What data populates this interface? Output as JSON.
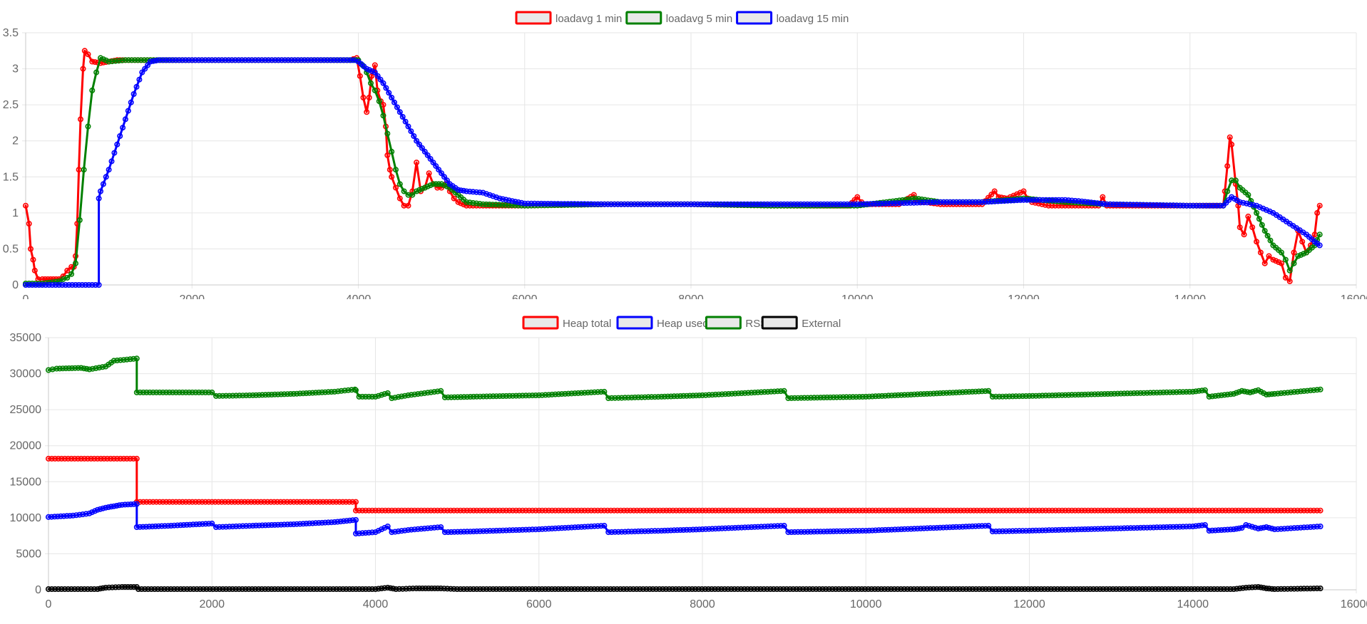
{
  "chart_data": [
    {
      "type": "line",
      "legend_position": "top-center",
      "grid": true,
      "xlim": [
        0,
        16000
      ],
      "ylim": [
        0,
        3.5
      ],
      "x_ticks": [
        "0",
        "2000",
        "4000",
        "6000",
        "8000",
        "10000",
        "12000",
        "14000",
        "16000"
      ],
      "y_ticks": [
        "0",
        "0.5",
        "1",
        "1.5",
        "2",
        "2.5",
        "3",
        "3.5"
      ],
      "series": [
        {
          "name": "loadavg 1 min",
          "color": "#ff0000",
          "x": [
            0,
            40,
            60,
            90,
            110,
            150,
            200,
            300,
            400,
            450,
            500,
            550,
            580,
            600,
            620,
            640,
            660,
            690,
            710,
            750,
            800,
            900,
            1000,
            1100,
            1200,
            1500,
            2000,
            3000,
            3900,
            3980,
            4020,
            4060,
            4100,
            4130,
            4160,
            4200,
            4230,
            4270,
            4300,
            4330,
            4350,
            4380,
            4400,
            4450,
            4500,
            4550,
            4600,
            4650,
            4700,
            4750,
            4800,
            4850,
            4900,
            4950,
            5000,
            5050,
            5100,
            5150,
            5200,
            5300,
            5500,
            6000,
            7000,
            8000,
            9000,
            9900,
            10000,
            10050,
            10100,
            10500,
            10680,
            10700,
            10800,
            11000,
            11500,
            11650,
            11700,
            11800,
            12000,
            12050,
            12100,
            12300,
            12900,
            12950,
            13000,
            13500,
            14000,
            14300,
            14400,
            14420,
            14450,
            14480,
            14500,
            14550,
            14580,
            14600,
            14650,
            14700,
            14750,
            14800,
            14850,
            14900,
            14950,
            15000,
            15100,
            15150,
            15200,
            15250,
            15300,
            15350,
            15400,
            15450,
            15500,
            15530,
            15560
          ],
          "y": [
            1.1,
            0.85,
            0.5,
            0.35,
            0.2,
            0.08,
            0.08,
            0.08,
            0.08,
            0.12,
            0.2,
            0.25,
            0.25,
            0.4,
            0.85,
            1.6,
            2.3,
            3.0,
            3.25,
            3.2,
            3.1,
            3.08,
            3.1,
            3.12,
            3.12,
            3.12,
            3.12,
            3.12,
            3.12,
            3.15,
            2.9,
            2.6,
            2.4,
            2.6,
            2.9,
            3.05,
            2.7,
            2.55,
            2.5,
            2.2,
            1.8,
            1.6,
            1.5,
            1.35,
            1.2,
            1.1,
            1.1,
            1.3,
            1.7,
            1.3,
            1.35,
            1.55,
            1.4,
            1.35,
            1.35,
            1.4,
            1.3,
            1.2,
            1.15,
            1.1,
            1.1,
            1.1,
            1.12,
            1.12,
            1.1,
            1.1,
            1.22,
            1.15,
            1.12,
            1.12,
            1.25,
            1.18,
            1.15,
            1.12,
            1.12,
            1.3,
            1.22,
            1.2,
            1.3,
            1.2,
            1.15,
            1.1,
            1.1,
            1.22,
            1.1,
            1.1,
            1.1,
            1.1,
            1.1,
            1.3,
            1.65,
            2.05,
            1.95,
            1.4,
            1.1,
            0.8,
            0.7,
            0.95,
            0.8,
            0.6,
            0.45,
            0.3,
            0.4,
            0.35,
            0.3,
            0.1,
            0.05,
            0.45,
            0.75,
            0.6,
            0.45,
            0.55,
            0.7,
            1.0,
            1.1
          ]
        },
        {
          "name": "loadavg 5 min",
          "color": "#008000",
          "x": [
            0,
            200,
            400,
            450,
            500,
            550,
            600,
            650,
            700,
            750,
            800,
            850,
            900,
            1000,
            1200,
            1500,
            2000,
            3000,
            3900,
            4000,
            4050,
            4100,
            4150,
            4200,
            4250,
            4300,
            4350,
            4400,
            4450,
            4500,
            4550,
            4600,
            4650,
            4700,
            4800,
            4900,
            5000,
            5100,
            5200,
            5300,
            5500,
            6000,
            7000,
            8000,
            9000,
            10000,
            10700,
            11000,
            11500,
            12000,
            12500,
            13000,
            14000,
            14400,
            14450,
            14500,
            14550,
            14600,
            14700,
            14800,
            14900,
            15000,
            15100,
            15150,
            15200,
            15250,
            15300,
            15400,
            15500,
            15560
          ],
          "y": [
            0.02,
            0.02,
            0.05,
            0.08,
            0.1,
            0.15,
            0.3,
            0.9,
            1.6,
            2.2,
            2.7,
            2.95,
            3.15,
            3.1,
            3.12,
            3.12,
            3.12,
            3.12,
            3.12,
            3.12,
            3.05,
            2.95,
            2.8,
            2.7,
            2.55,
            2.35,
            2.1,
            1.85,
            1.6,
            1.4,
            1.3,
            1.25,
            1.25,
            1.3,
            1.35,
            1.4,
            1.4,
            1.35,
            1.25,
            1.15,
            1.12,
            1.1,
            1.12,
            1.12,
            1.1,
            1.1,
            1.2,
            1.15,
            1.15,
            1.2,
            1.15,
            1.12,
            1.1,
            1.1,
            1.3,
            1.45,
            1.45,
            1.35,
            1.25,
            1.0,
            0.75,
            0.55,
            0.45,
            0.35,
            0.2,
            0.3,
            0.4,
            0.45,
            0.55,
            0.7
          ]
        },
        {
          "name": "loadavg 15 min",
          "color": "#0000ff",
          "x": [
            0,
            880,
            880,
            900,
            1000,
            1100,
            1200,
            1300,
            1400,
            1500,
            1600,
            2000,
            3000,
            3950,
            4000,
            4100,
            4200,
            4300,
            4400,
            4500,
            4600,
            4700,
            4800,
            4900,
            5000,
            5100,
            5200,
            5300,
            5500,
            5700,
            6000,
            7000,
            8000,
            9000,
            10000,
            11000,
            11500,
            12000,
            12500,
            12700,
            13000,
            14000,
            14400,
            14500,
            14600,
            14800,
            15000,
            15200,
            15400,
            15500,
            15560
          ],
          "y": [
            0,
            0,
            1.2,
            1.3,
            1.6,
            1.95,
            2.3,
            2.65,
            2.95,
            3.1,
            3.12,
            3.12,
            3.12,
            3.12,
            3.1,
            3.0,
            2.95,
            2.8,
            2.6,
            2.4,
            2.2,
            2.0,
            1.85,
            1.7,
            1.55,
            1.4,
            1.32,
            1.3,
            1.28,
            1.2,
            1.13,
            1.12,
            1.12,
            1.12,
            1.12,
            1.15,
            1.15,
            1.18,
            1.18,
            1.16,
            1.12,
            1.1,
            1.1,
            1.22,
            1.15,
            1.1,
            1.0,
            0.85,
            0.7,
            0.6,
            0.55
          ]
        }
      ]
    },
    {
      "type": "line",
      "legend_position": "top-center",
      "grid": true,
      "xlim": [
        0,
        16000
      ],
      "ylim": [
        0,
        35000
      ],
      "x_ticks": [
        "0",
        "2000",
        "4000",
        "6000",
        "8000",
        "10000",
        "12000",
        "14000",
        "16000"
      ],
      "y_ticks": [
        "0",
        "5000",
        "10000",
        "15000",
        "20000",
        "25000",
        "30000",
        "35000"
      ],
      "series": [
        {
          "name": "Heap total",
          "color": "#ff0000",
          "x": [
            0,
            1080,
            1080,
            3760,
            3760,
            15560
          ],
          "y": [
            18200,
            18200,
            12200,
            12200,
            11000,
            11000
          ]
        },
        {
          "name": "Heap used",
          "color": "#0000ff",
          "x": [
            0,
            300,
            500,
            600,
            700,
            800,
            900,
            1080,
            1080,
            1500,
            2000,
            2050,
            2500,
            3000,
            3500,
            3760,
            3760,
            4000,
            4150,
            4200,
            4400,
            4800,
            4850,
            5200,
            6000,
            6800,
            6850,
            7500,
            8000,
            9000,
            9050,
            10000,
            11500,
            11550,
            12000,
            13000,
            14000,
            14150,
            14200,
            14500,
            14600,
            14650,
            14800,
            14900,
            15000,
            15560
          ],
          "y": [
            10100,
            10300,
            10600,
            11100,
            11400,
            11600,
            11800,
            11900,
            8700,
            8900,
            9200,
            8700,
            8900,
            9100,
            9400,
            9700,
            7800,
            8000,
            8800,
            8000,
            8300,
            8700,
            8000,
            8100,
            8400,
            8900,
            8000,
            8200,
            8400,
            8900,
            8000,
            8200,
            8900,
            8100,
            8200,
            8500,
            8800,
            9000,
            8200,
            8400,
            8600,
            9000,
            8500,
            8700,
            8400,
            8800
          ]
        },
        {
          "name": "RSS",
          "color": "#008000",
          "x": [
            0,
            50,
            100,
            400,
            500,
            700,
            800,
            1000,
            1080,
            1080,
            2000,
            2050,
            2500,
            3000,
            3500,
            3750,
            3760,
            3800,
            4000,
            4150,
            4200,
            4400,
            4800,
            4850,
            5200,
            6000,
            6800,
            6850,
            7500,
            8000,
            9000,
            9050,
            10000,
            11500,
            11550,
            12000,
            13000,
            14000,
            14150,
            14200,
            14500,
            14600,
            14700,
            14800,
            14900,
            15000,
            15560
          ],
          "y": [
            30500,
            30600,
            30700,
            30800,
            30600,
            31000,
            31800,
            32000,
            32100,
            27400,
            27400,
            26900,
            27000,
            27200,
            27500,
            27800,
            27700,
            26800,
            26800,
            27300,
            26600,
            27000,
            27600,
            26700,
            26800,
            27000,
            27500,
            26600,
            26800,
            27000,
            27600,
            26600,
            26800,
            27600,
            26800,
            26900,
            27200,
            27500,
            27700,
            26800,
            27200,
            27600,
            27400,
            27700,
            27100,
            27200,
            27800
          ]
        },
        {
          "name": "External",
          "color": "#000000",
          "x": [
            0,
            600,
            700,
            900,
            1080,
            1100,
            4000,
            4150,
            4250,
            4500,
            4800,
            5000,
            14500,
            14650,
            14800,
            14900,
            15000,
            15560
          ],
          "y": [
            100,
            100,
            300,
            400,
            400,
            100,
            100,
            300,
            100,
            200,
            200,
            100,
            100,
            300,
            400,
            200,
            100,
            200
          ]
        }
      ]
    }
  ]
}
